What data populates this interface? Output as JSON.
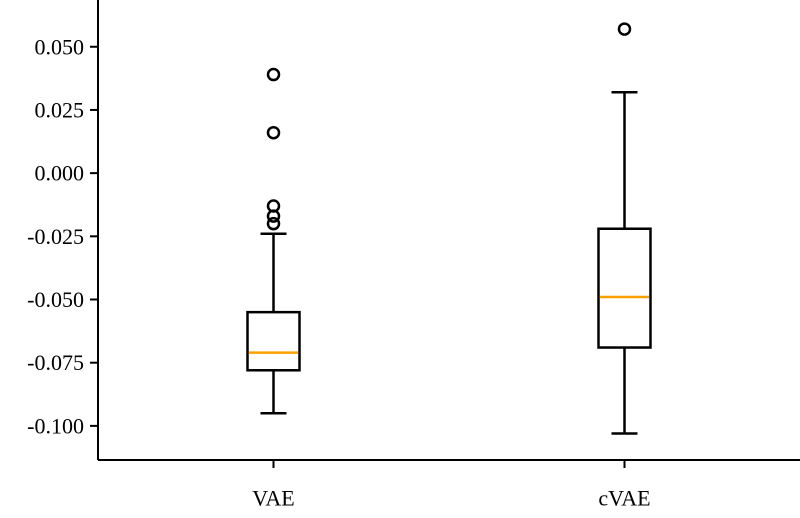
{
  "chart_data": {
    "type": "boxplot",
    "categories": [
      "VAE",
      "cVAE"
    ],
    "boxes": [
      {
        "category": "VAE",
        "whisker_low": -0.095,
        "q1": -0.078,
        "median": -0.071,
        "q3": -0.055,
        "whisker_high": -0.024,
        "outliers": [
          0.039,
          0.016,
          -0.013,
          -0.017,
          -0.02
        ]
      },
      {
        "category": "cVAE",
        "whisker_low": -0.103,
        "q1": -0.069,
        "median": -0.049,
        "q3": -0.022,
        "whisker_high": 0.032,
        "outliers": [
          0.057
        ]
      }
    ],
    "yticks": [
      0.05,
      0.025,
      0.0,
      -0.025,
      -0.05,
      -0.075,
      -0.1
    ],
    "ytick_labels": [
      "0.050",
      "0.025",
      "0.000",
      "-0.025",
      "-0.050",
      "-0.075",
      "-0.100"
    ],
    "ylim": [
      -0.1135,
      0.0685
    ],
    "title": "",
    "xlabel": "",
    "ylabel": "",
    "grid": false,
    "legend": "none",
    "colors": {
      "box": "#000000",
      "median": "#ff9f00",
      "outlier": "#000000"
    }
  }
}
